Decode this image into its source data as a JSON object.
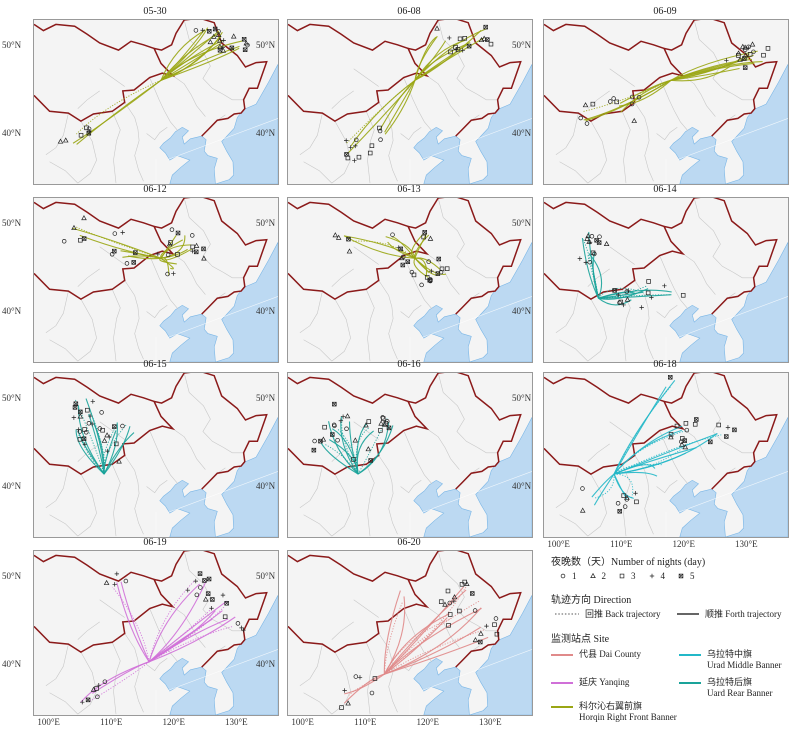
{
  "panels": [
    {
      "title": "05-30",
      "site_color": "#9aa614"
    },
    {
      "title": "06-08",
      "site_color": "#9aa614"
    },
    {
      "title": "06-09",
      "site_color": "#9aa614"
    },
    {
      "title": "06-12",
      "site_color": "#9aa614"
    },
    {
      "title": "06-13",
      "site_color": "#9aa614"
    },
    {
      "title": "06-14",
      "site_color": "#1aa39a"
    },
    {
      "title": "06-15",
      "site_color": "#1aa39a"
    },
    {
      "title": "06-16",
      "site_color": "#1aa39a"
    },
    {
      "title": "06-18",
      "site_color": "#23b8c8"
    },
    {
      "title": "06-19",
      "site_color": "#d070d8"
    },
    {
      "title": "06-20",
      "site_color": "#e08a8a"
    }
  ],
  "axes": {
    "lat_labels": [
      "50°N",
      "40°N"
    ],
    "lon_labels": [
      "100°E",
      "110°E",
      "120°E",
      "130°E"
    ]
  },
  "legend": {
    "nights_title": "夜晚数（天）Number of nights (day)",
    "nights_items": [
      "1",
      "2",
      "3",
      "4",
      "5"
    ],
    "direction_title": "轨迹方向 Direction",
    "back_label": "回推 Back trajectory",
    "forth_label": "顺推 Forth trajectory",
    "site_title": "监测站点 Site",
    "sites": [
      {
        "label": "代县 Dai County",
        "color": "#e08a8a"
      },
      {
        "label": "乌拉特中旗",
        "label2": "Urad Middle Banner",
        "color": "#23b8c8"
      },
      {
        "label": "延庆 Yanqing",
        "color": "#d070d8"
      },
      {
        "label": "乌拉特后旗",
        "label2": "Uard Rear Banner",
        "color": "#1aa39a"
      },
      {
        "label": "科尔沁右翼前旗",
        "label2": "Horqin Right Front Banner",
        "color": "#9aa614"
      }
    ]
  },
  "colors": {
    "border": "#8b1a1a",
    "sea": "#bcd9f2",
    "land": "#f4f4f4",
    "province": "#c8c8c8"
  }
}
